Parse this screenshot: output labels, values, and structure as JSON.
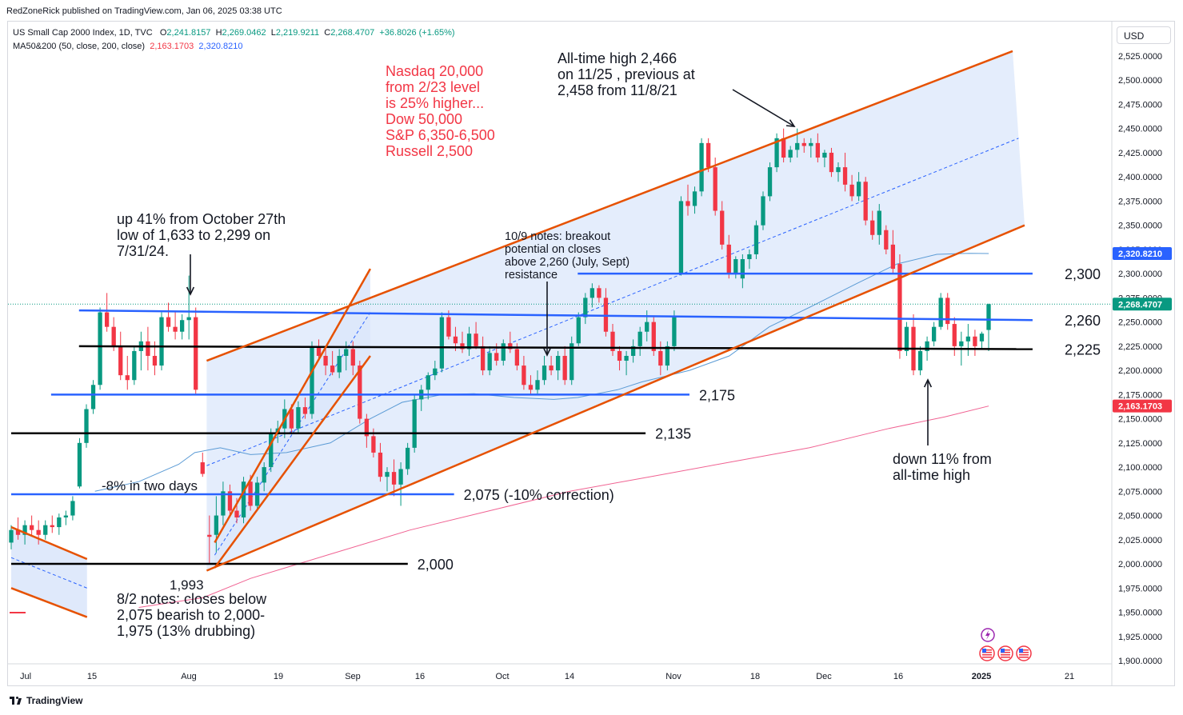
{
  "publisher": "RedZoneRick published on TradingView.com, Jan 06, 2025 03:38 UTC",
  "legend": {
    "symbol": "US Small Cap 2000 Index, 1D, TVC",
    "o_label": "O",
    "o": "2,241.8157",
    "h_label": "H",
    "h": "2,269.0462",
    "l_label": "L",
    "l": "2,219.9211",
    "c_label": "C",
    "c": "2,268.4707",
    "change": "+36.8026 (+1.65%)",
    "ma_label": "MA50&200 (50, close, 200, close)",
    "ma200_value": "2,163.1703",
    "ma50_value": "2,320.8210"
  },
  "currency": "USD",
  "footer": "TradingView",
  "colors": {
    "up": "#089981",
    "down": "#f23645",
    "channel": "#e65100",
    "level_blue": "#2962ff",
    "level_black": "#000000",
    "ma50": "#5b9bd5",
    "ma200": "#f06292",
    "fill": "#dbe7fb",
    "annotation_red": "#f23645"
  },
  "chart_data": {
    "type": "candlestick",
    "ylim": [
      1900,
      2530
    ],
    "y_ticks": [
      "2,525.0000",
      "2,500.0000",
      "2,475.0000",
      "2,450.0000",
      "2,425.0000",
      "2,400.0000",
      "2,375.0000",
      "2,350.0000",
      "2,325.0000",
      "2,300.0000",
      "2,275.0000",
      "2,250.0000",
      "2,225.0000",
      "2,200.0000",
      "2,175.0000",
      "2,150.0000",
      "2,125.0000",
      "2,100.0000",
      "2,075.0000",
      "2,050.0000",
      "2,025.0000",
      "2,000.0000",
      "1,975.0000",
      "1,950.0000",
      "1,925.0000",
      "1,900.0000"
    ],
    "x_ticks": [
      "Jul",
      "15",
      "Aug",
      "19",
      "Sep",
      "16",
      "Oct",
      "14",
      "Nov",
      "18",
      "Dec",
      "16",
      "2025",
      "21"
    ],
    "price_tags": [
      {
        "label": "2,320.8210",
        "value": 2320.82,
        "color": "#2962ff"
      },
      {
        "label": "2,268.4707",
        "value": 2268.47,
        "color": "#089981"
      },
      {
        "label": "2,163.1703",
        "value": 2163.17,
        "color": "#f23645"
      }
    ],
    "last_close": 2268.47,
    "candles": [
      [
        2022,
        2040,
        2015,
        2035
      ],
      [
        2035,
        2048,
        2025,
        2030
      ],
      [
        2030,
        2045,
        2020,
        2040
      ],
      [
        2040,
        2050,
        2030,
        2035
      ],
      [
        2035,
        2045,
        2020,
        2030
      ],
      [
        2030,
        2045,
        2025,
        2040
      ],
      [
        2040,
        2050,
        2032,
        2038
      ],
      [
        2038,
        2052,
        2030,
        2048
      ],
      [
        2048,
        2055,
        2040,
        2050
      ],
      [
        2050,
        2070,
        2045,
        2065
      ],
      [
        2080,
        2130,
        2078,
        2125
      ],
      [
        2125,
        2165,
        2120,
        2160
      ],
      [
        2160,
        2190,
        2155,
        2185
      ],
      [
        2185,
        2265,
        2180,
        2260
      ],
      [
        2260,
        2280,
        2240,
        2245
      ],
      [
        2245,
        2255,
        2220,
        2225
      ],
      [
        2225,
        2240,
        2190,
        2195
      ],
      [
        2195,
        2215,
        2180,
        2190
      ],
      [
        2190,
        2225,
        2185,
        2220
      ],
      [
        2220,
        2240,
        2200,
        2230
      ],
      [
        2230,
        2245,
        2200,
        2215
      ],
      [
        2215,
        2230,
        2195,
        2205
      ],
      [
        2205,
        2260,
        2200,
        2255
      ],
      [
        2255,
        2270,
        2240,
        2245
      ],
      [
        2245,
        2260,
        2232,
        2240
      ],
      [
        2240,
        2258,
        2232,
        2252
      ],
      [
        2252,
        2298,
        2232,
        2255
      ],
      [
        2255,
        2265,
        2175,
        2180
      ],
      [
        2105,
        2115,
        2090,
        2093
      ],
      [
        2030,
        2050,
        2000,
        2028
      ],
      [
        2030,
        2070,
        2012,
        2050
      ],
      [
        2050,
        2085,
        2040,
        2075
      ],
      [
        2075,
        2082,
        2050,
        2055
      ],
      [
        2055,
        2068,
        2042,
        2048
      ],
      [
        2048,
        2090,
        2042,
        2085
      ],
      [
        2085,
        2092,
        2055,
        2060
      ],
      [
        2060,
        2090,
        2055,
        2084
      ],
      [
        2084,
        2105,
        2075,
        2100
      ],
      [
        2100,
        2140,
        2095,
        2135
      ],
      [
        2135,
        2148,
        2125,
        2140
      ],
      [
        2140,
        2170,
        2130,
        2160
      ],
      [
        2160,
        2165,
        2135,
        2140
      ],
      [
        2140,
        2168,
        2135,
        2162
      ],
      [
        2162,
        2172,
        2150,
        2155
      ],
      [
        2155,
        2230,
        2150,
        2225
      ],
      [
        2225,
        2232,
        2210,
        2215
      ],
      [
        2215,
        2225,
        2195,
        2205
      ],
      [
        2205,
        2220,
        2195,
        2198
      ],
      [
        2198,
        2222,
        2192,
        2215
      ],
      [
        2215,
        2230,
        2200,
        2222
      ],
      [
        2222,
        2230,
        2195,
        2205
      ],
      [
        2205,
        2210,
        2145,
        2150
      ],
      [
        2150,
        2155,
        2120,
        2132
      ],
      [
        2132,
        2140,
        2110,
        2115
      ],
      [
        2115,
        2125,
        2085,
        2090
      ],
      [
        2090,
        2100,
        2075,
        2095
      ],
      [
        2095,
        2108,
        2070,
        2082
      ],
      [
        2082,
        2105,
        2060,
        2098
      ],
      [
        2098,
        2125,
        2092,
        2120
      ],
      [
        2120,
        2175,
        2115,
        2170
      ],
      [
        2170,
        2185,
        2158,
        2180
      ],
      [
        2180,
        2198,
        2170,
        2195
      ],
      [
        2195,
        2210,
        2190,
        2202
      ],
      [
        2202,
        2260,
        2198,
        2255
      ],
      [
        2255,
        2262,
        2232,
        2235
      ],
      [
        2235,
        2245,
        2220,
        2228
      ],
      [
        2228,
        2240,
        2218,
        2222
      ],
      [
        2222,
        2245,
        2215,
        2238
      ],
      [
        2238,
        2250,
        2222,
        2225
      ],
      [
        2225,
        2235,
        2195,
        2200
      ],
      [
        2200,
        2225,
        2195,
        2218
      ],
      [
        2218,
        2228,
        2205,
        2210
      ],
      [
        2210,
        2232,
        2205,
        2228
      ],
      [
        2228,
        2240,
        2218,
        2222
      ],
      [
        2222,
        2228,
        2200,
        2205
      ],
      [
        2205,
        2215,
        2180,
        2185
      ],
      [
        2185,
        2195,
        2175,
        2180
      ],
      [
        2180,
        2200,
        2175,
        2190
      ],
      [
        2190,
        2215,
        2185,
        2205
      ],
      [
        2205,
        2215,
        2195,
        2200
      ],
      [
        2200,
        2220,
        2190,
        2215
      ],
      [
        2215,
        2225,
        2185,
        2190
      ],
      [
        2190,
        2235,
        2185,
        2228
      ],
      [
        2228,
        2260,
        2225,
        2255
      ],
      [
        2255,
        2280,
        2248,
        2275
      ],
      [
        2275,
        2290,
        2265,
        2285
      ],
      [
        2285,
        2288,
        2270,
        2275
      ],
      [
        2275,
        2285,
        2235,
        2240
      ],
      [
        2240,
        2248,
        2215,
        2220
      ],
      [
        2220,
        2225,
        2200,
        2210
      ],
      [
        2210,
        2220,
        2195,
        2215
      ],
      [
        2215,
        2232,
        2208,
        2225
      ],
      [
        2225,
        2245,
        2215,
        2240
      ],
      [
        2240,
        2262,
        2230,
        2250
      ],
      [
        2250,
        2255,
        2215,
        2220
      ],
      [
        2220,
        2230,
        2195,
        2205
      ],
      [
        2205,
        2230,
        2200,
        2225
      ],
      [
        2225,
        2262,
        2220,
        2255
      ],
      [
        2300,
        2380,
        2298,
        2375
      ],
      [
        2375,
        2392,
        2360,
        2370
      ],
      [
        2370,
        2390,
        2362,
        2385
      ],
      [
        2385,
        2440,
        2380,
        2435
      ],
      [
        2435,
        2440,
        2405,
        2410
      ],
      [
        2410,
        2420,
        2360,
        2365
      ],
      [
        2365,
        2375,
        2325,
        2330
      ],
      [
        2330,
        2340,
        2295,
        2300
      ],
      [
        2300,
        2318,
        2295,
        2315
      ],
      [
        2295,
        2320,
        2285,
        2315
      ],
      [
        2315,
        2325,
        2305,
        2320
      ],
      [
        2320,
        2355,
        2315,
        2350
      ],
      [
        2350,
        2385,
        2345,
        2380
      ],
      [
        2380,
        2415,
        2375,
        2410
      ],
      [
        2410,
        2445,
        2405,
        2440
      ],
      [
        2440,
        2450,
        2415,
        2420
      ],
      [
        2420,
        2432,
        2415,
        2428
      ],
      [
        2428,
        2450,
        2420,
        2435
      ],
      [
        2435,
        2440,
        2425,
        2432
      ],
      [
        2432,
        2440,
        2420,
        2435
      ],
      [
        2435,
        2445,
        2415,
        2420
      ],
      [
        2420,
        2428,
        2410,
        2425
      ],
      [
        2425,
        2430,
        2400,
        2405
      ],
      [
        2405,
        2415,
        2395,
        2410
      ],
      [
        2410,
        2425,
        2385,
        2392
      ],
      [
        2392,
        2402,
        2375,
        2380
      ],
      [
        2380,
        2405,
        2375,
        2395
      ],
      [
        2395,
        2400,
        2350,
        2355
      ],
      [
        2355,
        2365,
        2335,
        2340
      ],
      [
        2340,
        2372,
        2330,
        2365
      ],
      [
        2345,
        2350,
        2320,
        2325
      ],
      [
        2330,
        2345,
        2300,
        2305
      ],
      [
        2310,
        2320,
        2212,
        2220
      ],
      [
        2220,
        2250,
        2215,
        2245
      ],
      [
        2245,
        2258,
        2195,
        2200
      ],
      [
        2200,
        2225,
        2195,
        2220
      ],
      [
        2220,
        2235,
        2210,
        2230
      ],
      [
        2230,
        2250,
        2225,
        2245
      ],
      [
        2245,
        2280,
        2242,
        2275
      ],
      [
        2275,
        2280,
        2242,
        2248
      ],
      [
        2248,
        2255,
        2215,
        2225
      ],
      [
        2225,
        2240,
        2205,
        2230
      ],
      [
        2230,
        2248,
        2215,
        2235
      ],
      [
        2235,
        2242,
        2215,
        2225
      ],
      [
        2230,
        2240,
        2222,
        2238
      ],
      [
        2241.8,
        2269.0,
        2219.9,
        2268.5
      ]
    ],
    "ma50": [
      [
        2105,
        2075
      ],
      [
        2160,
        2085
      ],
      [
        2210,
        2103
      ],
      [
        2230,
        2115
      ],
      [
        2262,
        2120
      ],
      [
        2300,
        2113
      ],
      [
        2345,
        2115
      ],
      [
        2400,
        2125
      ],
      [
        2450,
        2150
      ],
      [
        2490,
        2167
      ],
      [
        2540,
        2175
      ],
      [
        2580,
        2176
      ],
      [
        2630,
        2172
      ],
      [
        2680,
        2170
      ],
      [
        2710,
        2172
      ],
      [
        2760,
        2180
      ],
      [
        2790,
        2188
      ],
      [
        2850,
        2200
      ],
      [
        2900,
        2215
      ],
      [
        2950,
        2245
      ],
      [
        3000,
        2265
      ],
      [
        3060,
        2290
      ],
      [
        3110,
        2310
      ],
      [
        3160,
        2320
      ],
      [
        3200,
        2321
      ],
      [
        3225,
        2320.82
      ]
    ],
    "ma200": [
      [
        2160,
        1955
      ],
      [
        2240,
        1965
      ],
      [
        2300,
        1985
      ],
      [
        2400,
        2010
      ],
      [
        2500,
        2035
      ],
      [
        2600,
        2055
      ],
      [
        2700,
        2075
      ],
      [
        2800,
        2090
      ],
      [
        2900,
        2105
      ],
      [
        3000,
        2120
      ],
      [
        3100,
        2140
      ],
      [
        3170,
        2152
      ],
      [
        3225,
        2163.17
      ]
    ],
    "levels": [
      {
        "label": "2,300",
        "value": 2300,
        "x1": 2710,
        "x2": 3280,
        "value_end": 2300,
        "color": "blue"
      },
      {
        "label": "2,260",
        "value": 2262,
        "x1": 2085,
        "x2": 3280,
        "value_end": 2252,
        "color": "blue"
      },
      {
        "label": "2,225",
        "value": 2225,
        "x1": 2085,
        "x2": 3280,
        "value_end": 2222,
        "color": "black"
      },
      {
        "label": "2,175",
        "value": 2175,
        "x1": 2050,
        "x2": 2850,
        "value_end": 2175,
        "color": "blue"
      },
      {
        "label": "2,135",
        "value": 2135,
        "x1": 2000,
        "x2": 2795,
        "value_end": 2135,
        "color": "black"
      },
      {
        "label": "2,075 (-10% correction)",
        "value": 2072,
        "x1": 2000,
        "x2": 2555,
        "value_end": 2072,
        "color": "blue"
      },
      {
        "label": "2,000",
        "value": 2000,
        "x1": 2000,
        "x2": 2497,
        "value_end": 2000,
        "color": "black"
      }
    ],
    "channels": [
      {
        "x1": 2245,
        "y1": 2210,
        "x2": 3255,
        "y2": 2530
      },
      {
        "x1": 2245,
        "y1": 1993,
        "x2": 3270,
        "y2": 2350
      },
      {
        "x1": 2255,
        "y1": 2022,
        "x2": 2450,
        "y2": 2305
      },
      {
        "x1": 2255,
        "y1": 1996,
        "x2": 2450,
        "y2": 2215
      },
      {
        "x1": 2000,
        "y1": 2038,
        "x2": 2095,
        "y2": 2005
      },
      {
        "x1": 2000,
        "y1": 1975,
        "x2": 2095,
        "y2": 1945
      }
    ],
    "annotations": [
      {
        "id": "ath",
        "lines": [
          "All-time high 2,466",
          "on 11/25 , previous at",
          "2,458 from 11/8/21"
        ]
      },
      {
        "id": "targets",
        "lines": [
          "Nasdaq 20,000",
          "from 2/23 level",
          "is 25% higher...",
          "Dow 50,000",
          "S&P 6,350-6,500",
          "Russell 2,500"
        ]
      },
      {
        "id": "up41",
        "lines": [
          "up 41% from October 27th",
          "low of 1,633 to 2,299 on",
          "7/31/24."
        ]
      },
      {
        "id": "notes109",
        "lines": [
          "10/9 notes: breakout",
          "potential on closes",
          "above 2,260 (July, Sept)",
          "resistance"
        ]
      },
      {
        "id": "minus8",
        "lines": [
          "-8% in two days"
        ]
      },
      {
        "id": "low1993",
        "lines": [
          "1,993"
        ]
      },
      {
        "id": "notes82",
        "lines": [
          "8/2 notes: closes below",
          "2,075 bearish to 2,000-",
          "1,975 (13% drubbing)"
        ]
      },
      {
        "id": "down11",
        "lines": [
          "down 11% from",
          "all-time high"
        ]
      }
    ]
  }
}
